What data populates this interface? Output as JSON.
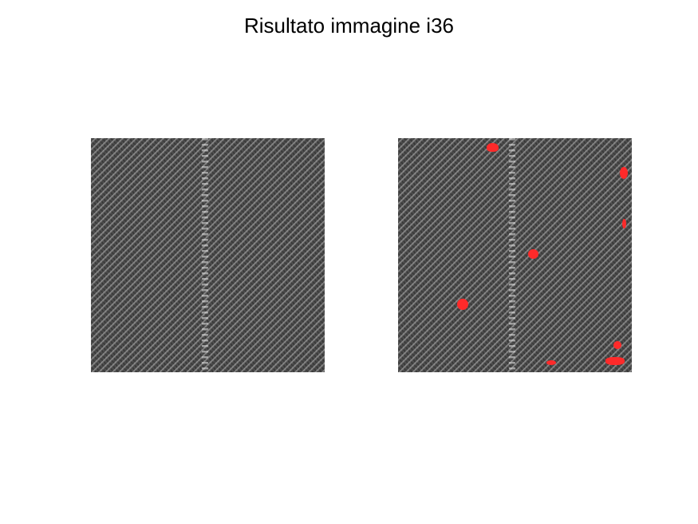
{
  "figure": {
    "title": "Risultato immagine i36"
  },
  "images": [
    {
      "name": "original",
      "description_color": "#474747"
    },
    {
      "name": "result",
      "overlay_color": "#ff2a2a"
    }
  ],
  "colors": {
    "background": "#ffffff",
    "fabric": "#474747",
    "defect_overlay": "#ff2a2a"
  }
}
